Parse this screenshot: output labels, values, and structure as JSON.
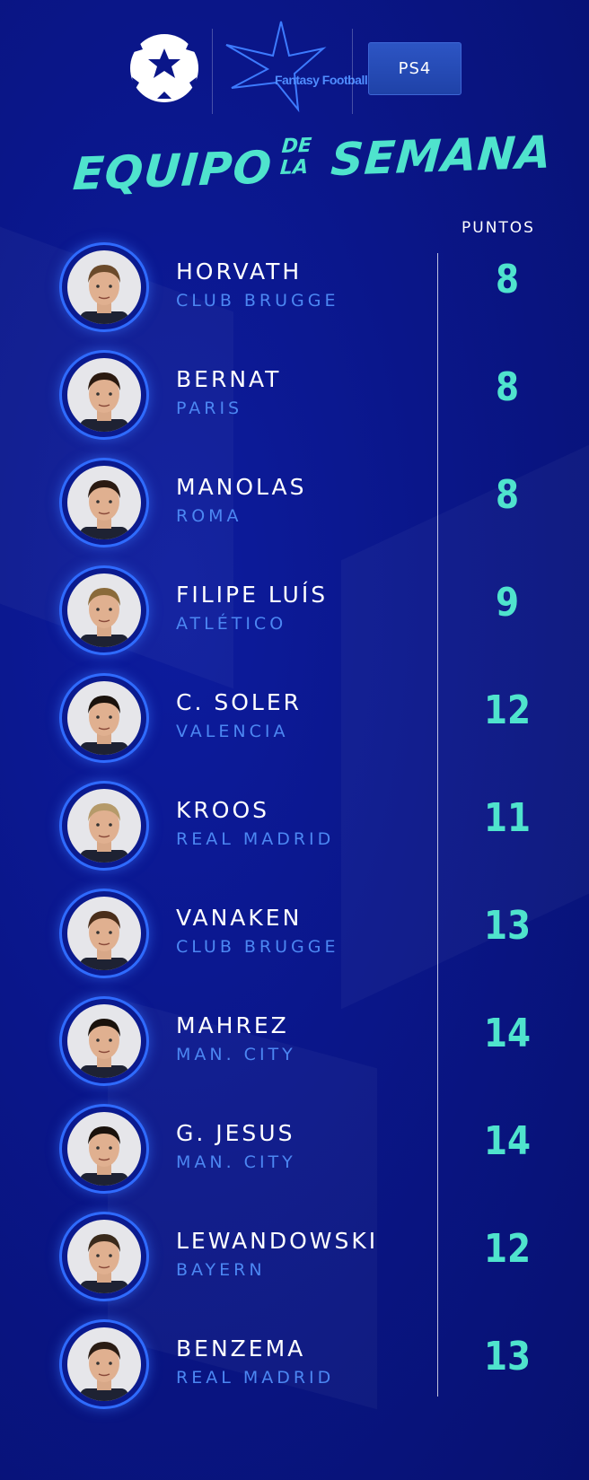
{
  "header": {
    "logos": {
      "ucl": "champions-league-starball-logo",
      "fantasy": "Fantasy Football",
      "ps4": "PS4"
    },
    "title": {
      "word1": "EQUIPO",
      "de": "DE",
      "la": "LA",
      "word2": "SEMANA"
    },
    "points_header": "PUNTOS"
  },
  "colors": {
    "accent": "#4fe3cd",
    "team_text": "#4c87f2",
    "ring": "#2f6bff",
    "background": "#0a1689"
  },
  "players": [
    {
      "name": "HORVATH",
      "team": "CLUB BRUGGE",
      "points": "8",
      "hair": "#6b4a2b"
    },
    {
      "name": "BERNAT",
      "team": "PARIS",
      "points": "8",
      "hair": "#2b1a10"
    },
    {
      "name": "MANOLAS",
      "team": "ROMA",
      "points": "8",
      "hair": "#2a1a12"
    },
    {
      "name": "FILIPE LUÍS",
      "team": "ATLÉTICO",
      "points": "9",
      "hair": "#8a6a3a"
    },
    {
      "name": "C. SOLER",
      "team": "VALENCIA",
      "points": "12",
      "hair": "#1a120c"
    },
    {
      "name": "KROOS",
      "team": "REAL MADRID",
      "points": "11",
      "hair": "#b59a6a"
    },
    {
      "name": "VANAKEN",
      "team": "CLUB BRUGGE",
      "points": "13",
      "hair": "#4a2e1a"
    },
    {
      "name": "MAHREZ",
      "team": "MAN. CITY",
      "points": "14",
      "hair": "#1a120c"
    },
    {
      "name": "G. JESUS",
      "team": "MAN. CITY",
      "points": "14",
      "hair": "#1a120c"
    },
    {
      "name": "LEWANDOWSKI",
      "team": "BAYERN",
      "points": "12",
      "hair": "#3a2a1c"
    },
    {
      "name": "BENZEMA",
      "team": "REAL MADRID",
      "points": "13",
      "hair": "#2a1c14"
    }
  ]
}
